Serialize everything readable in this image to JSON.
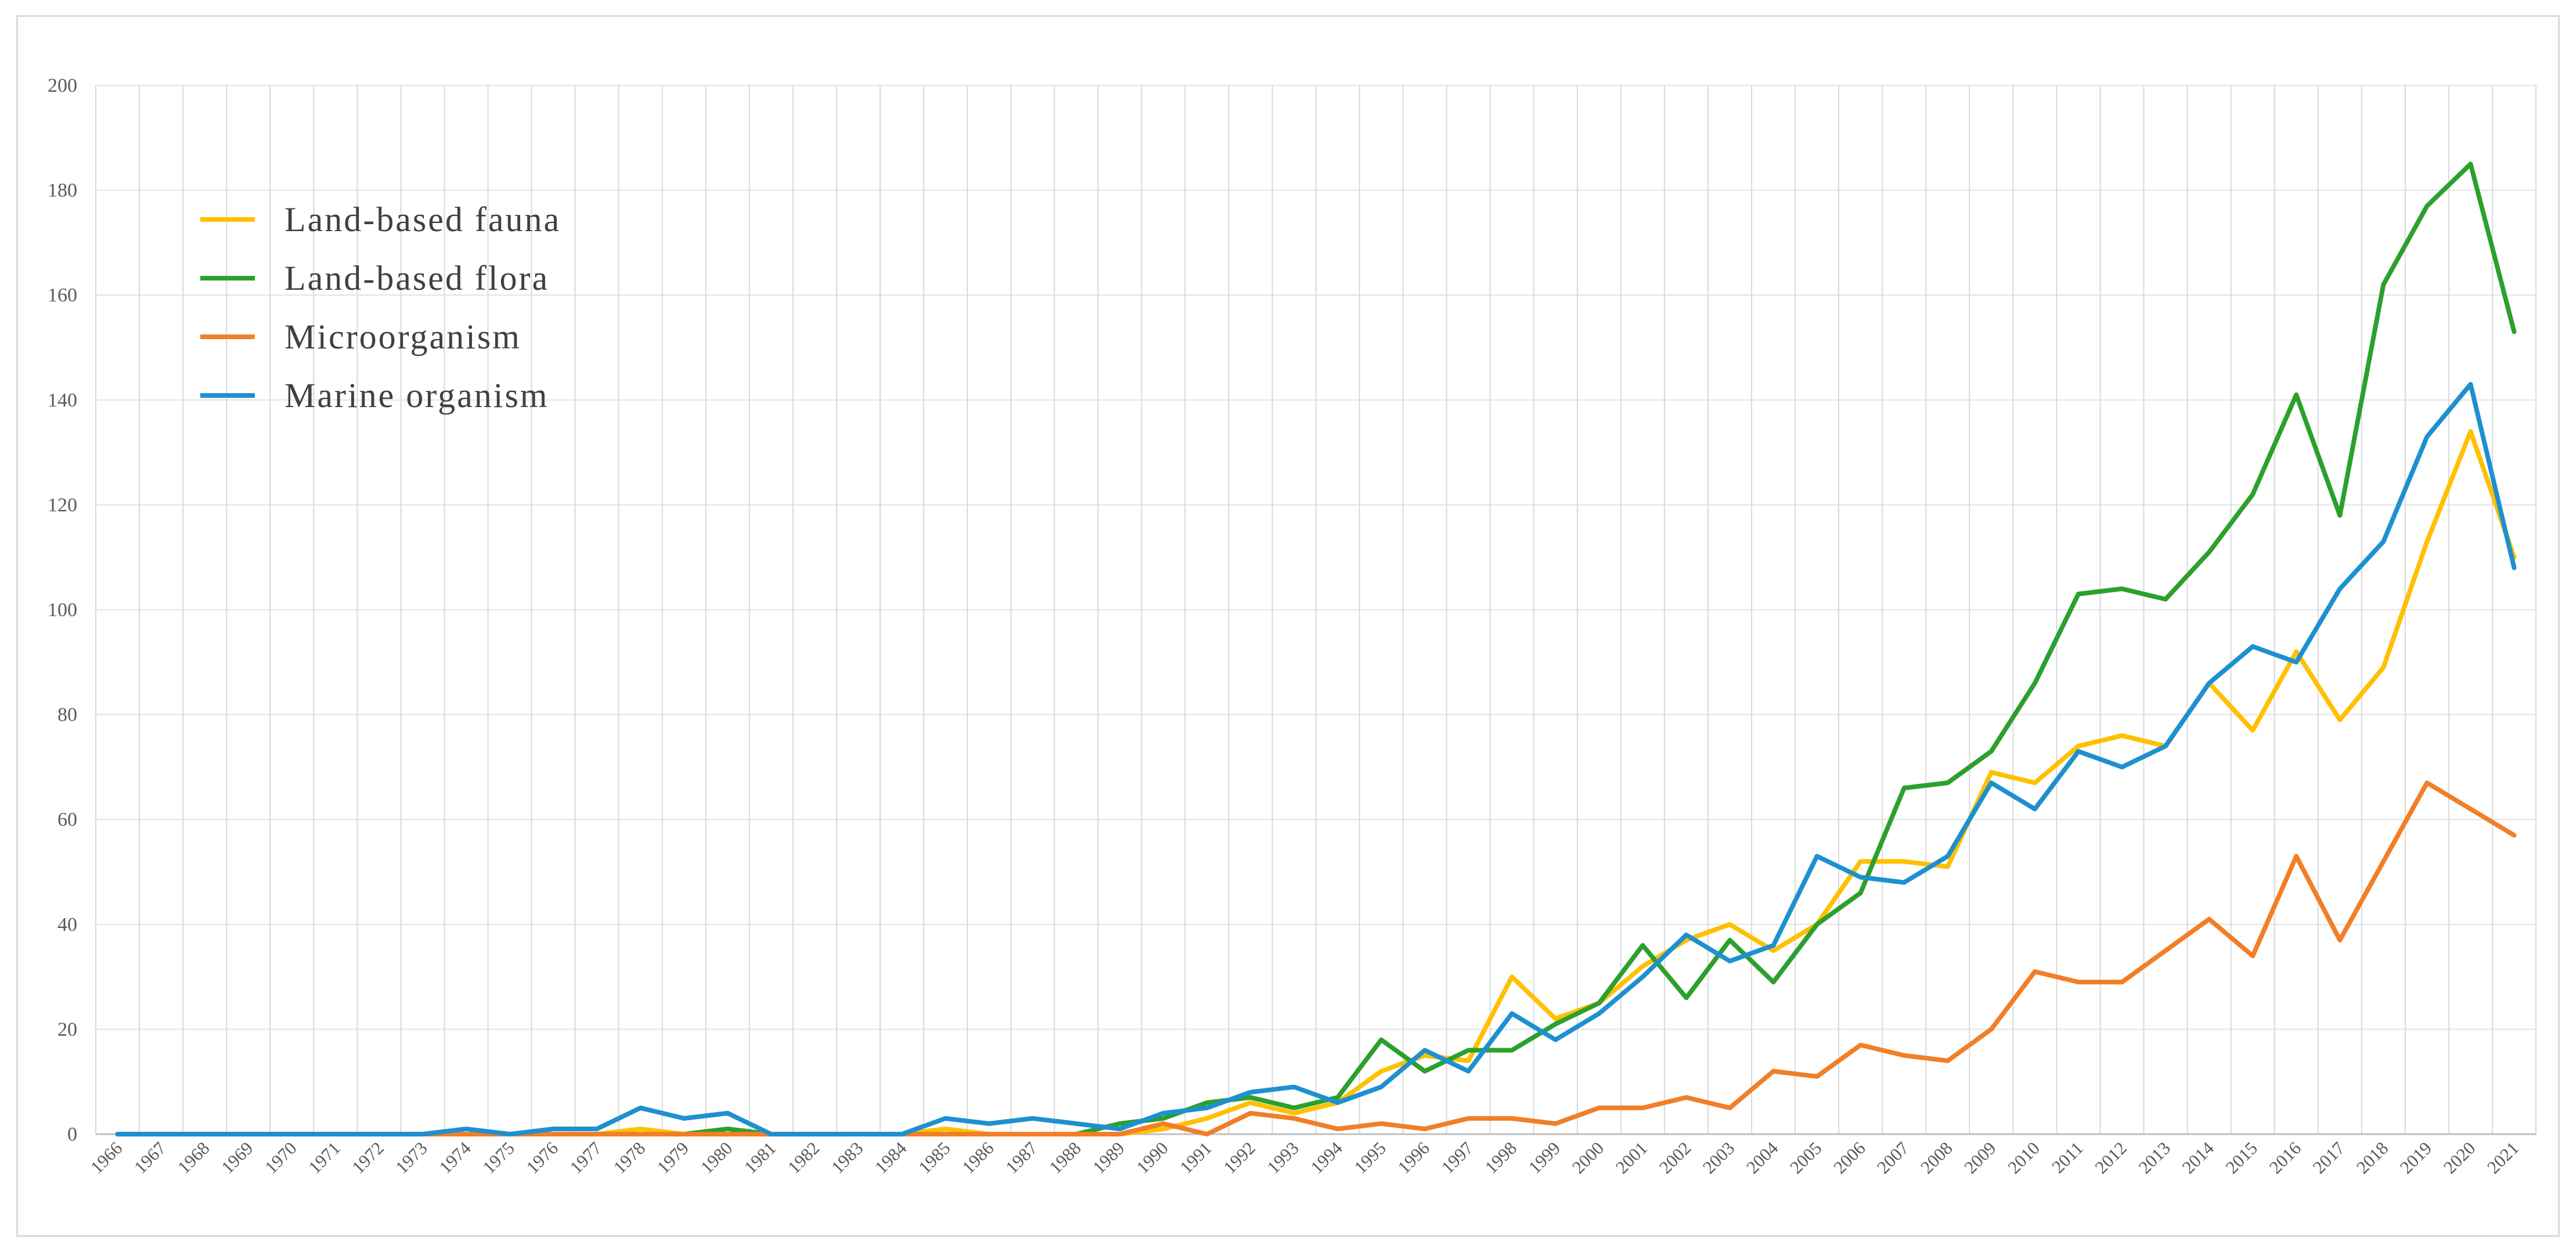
{
  "chart_data": {
    "type": "line",
    "title": "",
    "xlabel": "",
    "ylabel": "",
    "ylim": [
      0,
      200
    ],
    "yticks": [
      0,
      20,
      40,
      60,
      80,
      100,
      120,
      140,
      160,
      180,
      200
    ],
    "grid": "on",
    "legend_position": "top-left",
    "categories": [
      "1966",
      "1967",
      "1968",
      "1969",
      "1970",
      "1971",
      "1972",
      "1973",
      "1974",
      "1975",
      "1976",
      "1977",
      "1978",
      "1979",
      "1980",
      "1981",
      "1982",
      "1983",
      "1984",
      "1985",
      "1986",
      "1987",
      "1988",
      "1989",
      "1990",
      "1991",
      "1992",
      "1993",
      "1994",
      "1995",
      "1996",
      "1997",
      "1998",
      "1999",
      "2000",
      "2001",
      "2002",
      "2003",
      "2004",
      "2005",
      "2006",
      "2007",
      "2008",
      "2009",
      "2010",
      "2011",
      "2012",
      "2013",
      "2014",
      "2015",
      "2016",
      "2017",
      "2018",
      "2019",
      "2020",
      "2021"
    ],
    "series": [
      {
        "name": "Land-based fauna",
        "color": "#FFC000",
        "values": [
          0,
          0,
          0,
          0,
          0,
          0,
          0,
          0,
          0,
          0,
          0,
          0,
          1,
          0,
          1,
          0,
          0,
          0,
          0,
          1,
          0,
          0,
          0,
          0,
          1,
          3,
          6,
          4,
          6,
          12,
          15,
          14,
          30,
          22,
          25,
          32,
          37,
          40,
          35,
          40,
          52,
          52,
          51,
          69,
          67,
          74,
          76,
          74,
          86,
          77,
          92,
          79,
          89,
          113,
          134,
          110
        ]
      },
      {
        "name": "Land-based flora",
        "color": "#2CA02C",
        "values": [
          0,
          0,
          0,
          0,
          0,
          0,
          0,
          0,
          0,
          0,
          0,
          0,
          0,
          0,
          1,
          0,
          0,
          0,
          0,
          0,
          0,
          0,
          0,
          2,
          3,
          6,
          7,
          5,
          7,
          18,
          12,
          16,
          16,
          21,
          25,
          36,
          26,
          37,
          29,
          40,
          46,
          66,
          67,
          73,
          86,
          103,
          104,
          102,
          111,
          122,
          141,
          118,
          162,
          177,
          185,
          153
        ]
      },
      {
        "name": "Microorganism",
        "color": "#F07F28",
        "values": [
          0,
          0,
          0,
          0,
          0,
          0,
          0,
          0,
          0,
          0,
          0,
          0,
          0,
          0,
          0,
          0,
          0,
          0,
          0,
          0,
          0,
          0,
          0,
          0,
          2,
          0,
          4,
          3,
          1,
          2,
          1,
          3,
          3,
          2,
          5,
          5,
          7,
          5,
          12,
          11,
          17,
          15,
          14,
          20,
          31,
          29,
          29,
          35,
          41,
          34,
          53,
          37,
          52,
          67,
          62,
          57
        ]
      },
      {
        "name": "Marine organism",
        "color": "#1E90D0",
        "values": [
          0,
          0,
          0,
          0,
          0,
          0,
          0,
          0,
          1,
          0,
          1,
          1,
          5,
          3,
          4,
          0,
          0,
          0,
          0,
          3,
          2,
          3,
          2,
          1,
          4,
          5,
          8,
          9,
          6,
          9,
          16,
          12,
          23,
          18,
          23,
          30,
          38,
          33,
          36,
          53,
          49,
          48,
          53,
          67,
          62,
          73,
          70,
          74,
          86,
          93,
          90,
          104,
          113,
          133,
          143,
          108
        ]
      }
    ]
  }
}
